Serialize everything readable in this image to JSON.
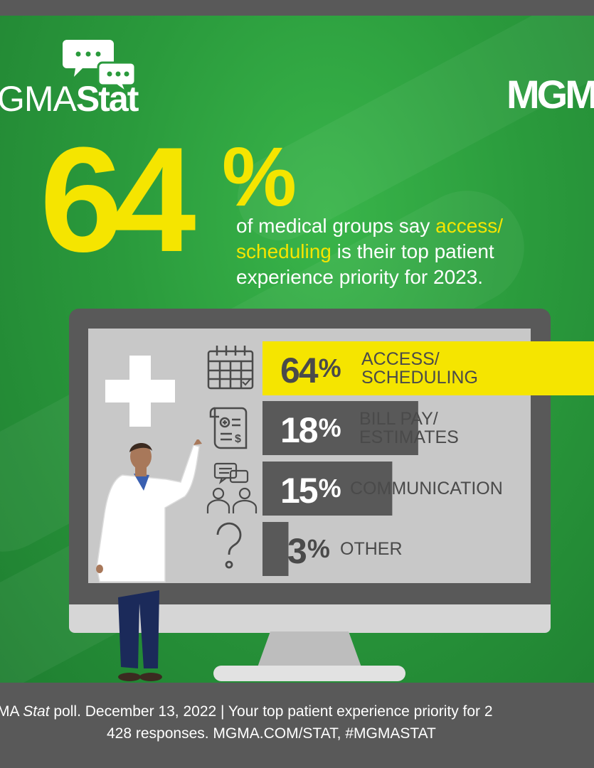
{
  "brand": {
    "logo_left_regular": "GMA",
    "logo_left_bold": "Stat",
    "logo_right": "MGM"
  },
  "headline": {
    "big_number": "64",
    "big_percent": "%",
    "text_before": "of medical groups say ",
    "highlight": "access/ scheduling",
    "text_after": " is their top patient experience priority for 2023."
  },
  "chart_data": {
    "type": "bar",
    "orientation": "horizontal",
    "categories": [
      "ACCESS/\nSCHEDULING",
      "BILL PAY/\nESTIMATES",
      "COMMUNICATION",
      "OTHER"
    ],
    "values": [
      64,
      18,
      15,
      3
    ],
    "value_labels": [
      "64",
      "18",
      "15",
      "3"
    ],
    "unit": "%",
    "icons": [
      "calendar-icon",
      "bill-icon",
      "communication-icon",
      "question-icon"
    ],
    "colors": {
      "highlight_bar": "#f5e500",
      "bar": "#595959",
      "highlight_text": "#4a4a4a",
      "bar_text": "#ffffff"
    }
  },
  "footer": {
    "line1_a": "MA ",
    "line1_italic": "Stat",
    "line1_b": " poll. December 13, 2022  |  Your top patient experience priority for 2",
    "line2": "428 responses. MGMA.COM/STAT, #MGMASTAT"
  },
  "colors": {
    "green": "#2a9a3c",
    "yellow": "#f5e500",
    "gray_dark": "#595959",
    "screen": "#c8c8c8"
  }
}
